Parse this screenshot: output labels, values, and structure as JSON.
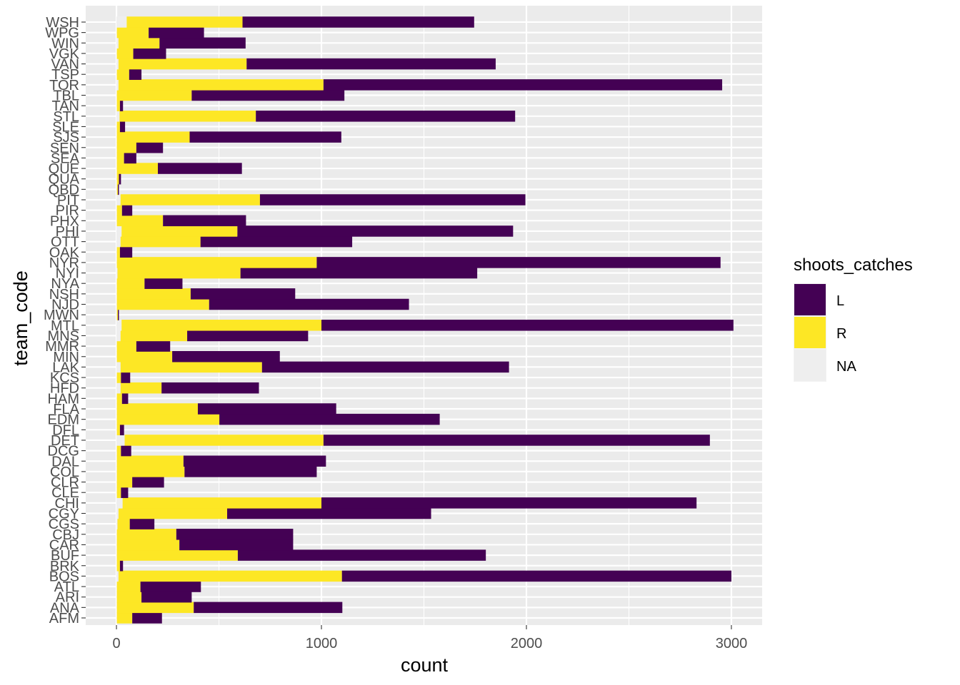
{
  "chart_data": {
    "type": "bar",
    "orientation": "horizontal",
    "stacked": true,
    "xlabel": "count",
    "ylabel": "team_code",
    "xlim": [
      -150,
      3150
    ],
    "x_ticks": [
      0,
      1000,
      2000,
      3000
    ],
    "x_tick_labels": [
      "0",
      "1000",
      "2000",
      "3000"
    ],
    "grid": true,
    "legend_placement": "right",
    "legend": {
      "title": "shoots_catches",
      "entries": [
        {
          "key": "L",
          "label": "L",
          "color": "#440154"
        },
        {
          "key": "R",
          "label": "R",
          "color": "#FDE725"
        },
        {
          "key": "NA",
          "label": "NA",
          "color": "#EEEEEE"
        }
      ]
    },
    "colors": {
      "panel": "#EBEBEB",
      "grid": "#FFFFFF",
      "L": "#440154",
      "R": "#FDE725",
      "NA": "#EEEEEE"
    },
    "categories": [
      "AFM",
      "ANA",
      "ARI",
      "ATL",
      "BOS",
      "BRK",
      "BUF",
      "CAR",
      "CBJ",
      "CGS",
      "CGY",
      "CHI",
      "CLE",
      "CLR",
      "COL",
      "DAL",
      "DCG",
      "DET",
      "DFL",
      "EDM",
      "FLA",
      "HAM",
      "HFD",
      "KCS",
      "LAK",
      "MIN",
      "MMR",
      "MNS",
      "MTL",
      "MWN",
      "NJD",
      "NSH",
      "NYA",
      "NYI",
      "NYR",
      "OAK",
      "OTT",
      "PHI",
      "PHX",
      "PIR",
      "PIT",
      "QBD",
      "QUA",
      "QUE",
      "SEA",
      "SEN",
      "SJS",
      "SLE",
      "STL",
      "TAN",
      "TBL",
      "TOR",
      "TSP",
      "VAN",
      "VGK",
      "WIN",
      "WPG",
      "WSH"
    ],
    "series": [
      {
        "name": "NA",
        "values": [
          2,
          2,
          2,
          2,
          10,
          2,
          2,
          2,
          2,
          5,
          10,
          30,
          2,
          2,
          2,
          2,
          2,
          40,
          2,
          2,
          2,
          2,
          20,
          2,
          20,
          2,
          2,
          20,
          25,
          2,
          2,
          2,
          2,
          5,
          2,
          2,
          20,
          25,
          2,
          2,
          20,
          2,
          2,
          2,
          2,
          2,
          2,
          2,
          15,
          2,
          2,
          10,
          2,
          10,
          2,
          10,
          2,
          50
        ]
      },
      {
        "name": "R",
        "values": [
          75,
          375,
          120,
          115,
          1090,
          15,
          590,
          305,
          290,
          60,
          530,
          970,
          20,
          75,
          330,
          325,
          20,
          970,
          15,
          500,
          395,
          25,
          200,
          20,
          690,
          270,
          95,
          325,
          975,
          5,
          450,
          360,
          135,
          600,
          975,
          15,
          390,
          565,
          225,
          25,
          680,
          5,
          10,
          200,
          35,
          95,
          355,
          15,
          665,
          15,
          365,
          1000,
          60,
          625,
          80,
          200,
          155,
          565
        ]
      },
      {
        "name": "L",
        "values": [
          145,
          725,
          245,
          295,
          1900,
          15,
          1210,
          555,
          570,
          120,
          995,
          1830,
          35,
          155,
          645,
          695,
          50,
          1885,
          20,
          1075,
          675,
          30,
          475,
          45,
          1205,
          525,
          165,
          590,
          2010,
          5,
          975,
          510,
          185,
          1155,
          1970,
          60,
          740,
          1345,
          405,
          50,
          1295,
          5,
          10,
          410,
          60,
          130,
          740,
          25,
          1265,
          15,
          745,
          1945,
          60,
          1215,
          160,
          420,
          270,
          1130
        ]
      }
    ]
  }
}
